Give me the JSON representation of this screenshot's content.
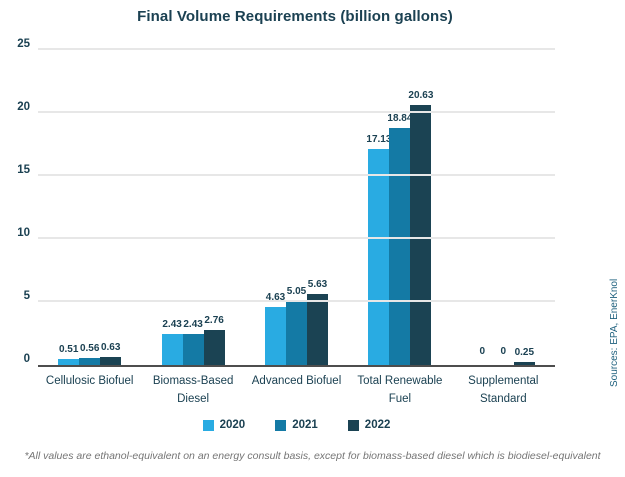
{
  "title": "Final Volume Requirements (billion gallons)",
  "footnote": "*All values are ethanol-equivalent on an energy consult basis, except for biomass-based diesel which is biodiesel-equivalent",
  "source_note": "Sources: EPA, EnerKnol",
  "colors": {
    "title_text": "#1B4152",
    "axis_text": "#1B4152",
    "value_label_text": "#1B4152",
    "gridline": "#E7E7E7",
    "axis_line": "#4d4d4d",
    "footnote_text": "#757575",
    "source_text": "#20627F"
  },
  "chart_data": {
    "type": "bar",
    "title": "Final Volume Requirements (billion gallons)",
    "categories": [
      "Cellulosic Biofuel",
      "Biomass-Based Diesel",
      "Advanced Biofuel",
      "Total Renewable Fuel",
      "Supplemental Standard"
    ],
    "series": [
      {
        "name": "2020",
        "color": "#29ABE2",
        "values": [
          0.51,
          2.43,
          4.63,
          17.13,
          0
        ],
        "labels": [
          "0.51",
          "2.43",
          "4.63",
          "17.13",
          "0"
        ]
      },
      {
        "name": "2021",
        "color": "#147AA5",
        "values": [
          0.56,
          2.43,
          5.05,
          18.84,
          0
        ],
        "labels": [
          "0.56",
          "2.43",
          "5.05",
          "18.84",
          "0"
        ]
      },
      {
        "name": "2022",
        "color": "#1B4353",
        "values": [
          0.63,
          2.76,
          5.63,
          20.63,
          0.25
        ],
        "labels": [
          "0.63",
          "2.76",
          "5.63",
          "20.63",
          "0.25"
        ]
      }
    ],
    "xlabel": "",
    "ylabel": "",
    "ylim": [
      0,
      25
    ],
    "yticks": [
      0,
      5,
      10,
      15,
      20,
      25
    ],
    "grid": true,
    "legend_position": "bottom"
  }
}
